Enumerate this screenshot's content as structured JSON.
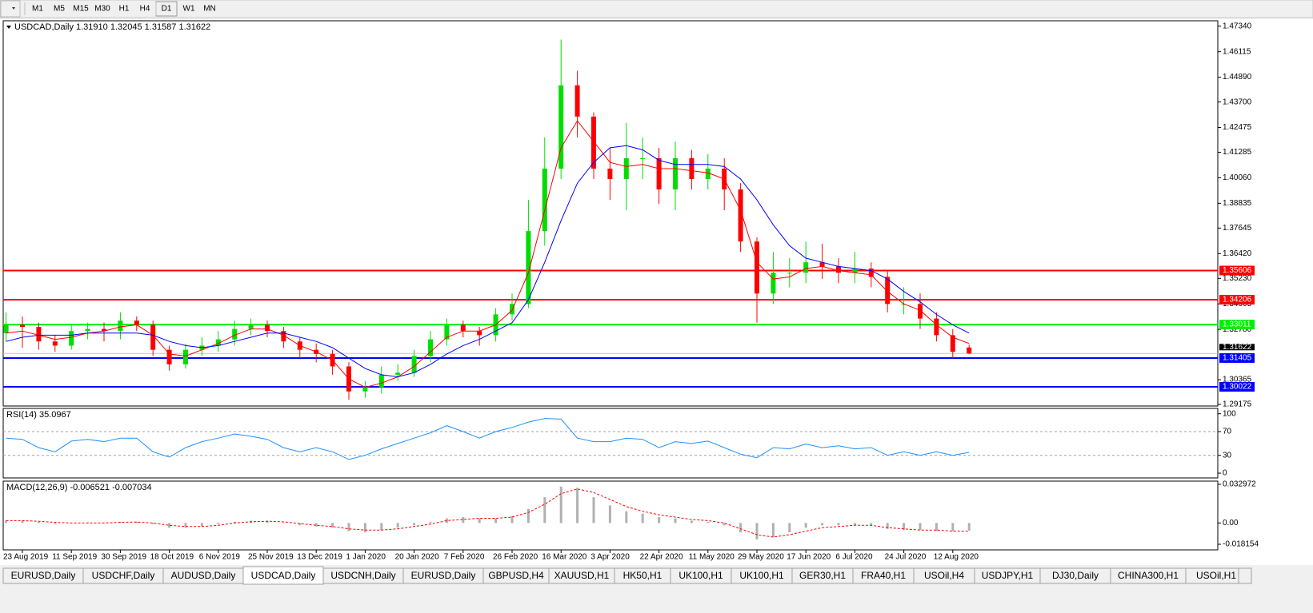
{
  "toolbar": {
    "timeframes": [
      "M1",
      "M5",
      "M15",
      "M30",
      "H1",
      "H4",
      "D1",
      "W1",
      "MN"
    ]
  },
  "chart_data": [
    {
      "type": "candlestick",
      "title": "USDCAD,Daily  1.31910 1.32045 1.31587 1.31622",
      "categories": [
        null,
        "23 Aug 2019",
        null,
        null,
        "11 Sep 2019",
        null,
        null,
        "30 Sep 2019",
        null,
        null,
        "18 Oct 2019",
        null,
        null,
        "6 Nov 2019",
        null,
        null,
        "25 Nov 2019",
        null,
        null,
        "13 Dec 2019",
        null,
        null,
        "1 Jan 2020",
        null,
        null,
        "20 Jan 2020",
        null,
        null,
        "7 Feb 2020",
        null,
        null,
        "26 Feb 2020",
        null,
        null,
        "16 Mar 2020",
        null,
        null,
        "3 Apr 2020",
        null,
        null,
        "22 Apr 2020",
        null,
        null,
        "11 May 2020",
        null,
        null,
        "29 May 2020",
        null,
        null,
        "17 Jun 2020",
        null,
        null,
        "6 Jul 2020",
        null,
        null,
        "24 Jul 2020",
        null,
        null,
        "12 Aug 2020",
        null
      ],
      "open": [
        1.326,
        1.33,
        1.329,
        1.322,
        1.32,
        1.327,
        1.328,
        1.327,
        1.332,
        1.33,
        1.318,
        1.311,
        1.318,
        1.32,
        1.323,
        1.328,
        1.33,
        1.327,
        1.322,
        1.318,
        1.316,
        1.31,
        1.298,
        1.3,
        1.306,
        1.307,
        1.315,
        1.323,
        1.33,
        1.327,
        1.325,
        1.335,
        1.34,
        1.375,
        1.405,
        1.445,
        1.43,
        1.405,
        1.4,
        1.41,
        1.41,
        1.395,
        1.41,
        1.4,
        1.405,
        1.395,
        1.37,
        1.345,
        1.355,
        1.355,
        1.36,
        1.358,
        1.355,
        1.357,
        1.353,
        1.34,
        1.34,
        1.333,
        1.325,
        1.3191
      ],
      "high": [
        1.336,
        1.334,
        1.331,
        1.325,
        1.33,
        1.331,
        1.331,
        1.336,
        1.334,
        1.332,
        1.32,
        1.321,
        1.324,
        1.327,
        1.332,
        1.333,
        1.332,
        1.329,
        1.324,
        1.321,
        1.318,
        1.312,
        1.303,
        1.31,
        1.311,
        1.318,
        1.327,
        1.333,
        1.332,
        1.329,
        1.338,
        1.345,
        1.39,
        1.42,
        1.467,
        1.452,
        1.432,
        1.415,
        1.427,
        1.42,
        1.415,
        1.418,
        1.414,
        1.412,
        1.41,
        1.398,
        1.372,
        1.365,
        1.362,
        1.37,
        1.369,
        1.362,
        1.365,
        1.36,
        1.356,
        1.348,
        1.345,
        1.336,
        1.328,
        1.32045
      ],
      "low": [
        1.322,
        1.319,
        1.318,
        1.317,
        1.318,
        1.323,
        1.322,
        1.323,
        1.327,
        1.315,
        1.308,
        1.309,
        1.315,
        1.317,
        1.32,
        1.325,
        1.324,
        1.319,
        1.314,
        1.312,
        1.306,
        1.294,
        1.295,
        1.297,
        1.303,
        1.305,
        1.312,
        1.32,
        1.324,
        1.32,
        1.322,
        1.332,
        1.338,
        1.368,
        1.4,
        1.42,
        1.4,
        1.39,
        1.385,
        1.4,
        1.388,
        1.385,
        1.395,
        1.395,
        1.385,
        1.365,
        1.331,
        1.34,
        1.348,
        1.35,
        1.352,
        1.35,
        1.35,
        1.348,
        1.336,
        1.335,
        1.328,
        1.322,
        1.314,
        1.31587
      ],
      "close": [
        1.33,
        1.329,
        1.322,
        1.32,
        1.327,
        1.328,
        1.327,
        1.332,
        1.33,
        1.318,
        1.311,
        1.318,
        1.32,
        1.323,
        1.328,
        1.33,
        1.327,
        1.322,
        1.318,
        1.316,
        1.31,
        1.298,
        1.3,
        1.306,
        1.307,
        1.315,
        1.323,
        1.33,
        1.327,
        1.325,
        1.335,
        1.34,
        1.375,
        1.405,
        1.445,
        1.43,
        1.405,
        1.4,
        1.41,
        1.41,
        1.395,
        1.41,
        1.4,
        1.405,
        1.395,
        1.37,
        1.345,
        1.355,
        1.355,
        1.36,
        1.358,
        1.355,
        1.357,
        1.353,
        1.34,
        1.34,
        1.333,
        1.325,
        1.317,
        1.31622
      ],
      "up_color": "#00dd00",
      "down_color": "#ff0000",
      "series": [
        {
          "color": "#ff0000",
          "values": [
            1.326,
            1.327,
            1.325,
            1.323,
            1.324,
            1.326,
            1.327,
            1.329,
            1.33,
            1.325,
            1.316,
            1.315,
            1.318,
            1.321,
            1.325,
            1.328,
            1.328,
            1.325,
            1.32,
            1.317,
            1.313,
            1.304,
            1.3,
            1.302,
            1.305,
            1.31,
            1.317,
            1.324,
            1.327,
            1.327,
            1.33,
            1.337,
            1.355,
            1.385,
            1.415,
            1.428,
            1.418,
            1.408,
            1.406,
            1.407,
            1.405,
            1.405,
            1.404,
            1.403,
            1.4,
            1.385,
            1.36,
            1.352,
            1.353,
            1.357,
            1.358,
            1.356,
            1.355,
            1.354,
            1.346,
            1.34,
            1.337,
            1.33,
            1.324,
            1.321
          ]
        },
        {
          "color": "#0000ff",
          "values": [
            1.322,
            1.324,
            1.325,
            1.325,
            1.325,
            1.326,
            1.326,
            1.326,
            1.326,
            1.325,
            1.322,
            1.32,
            1.319,
            1.32,
            1.322,
            1.324,
            1.326,
            1.326,
            1.324,
            1.322,
            1.319,
            1.314,
            1.309,
            1.306,
            1.305,
            1.307,
            1.311,
            1.316,
            1.32,
            1.323,
            1.327,
            1.331,
            1.342,
            1.36,
            1.38,
            1.398,
            1.408,
            1.415,
            1.416,
            1.414,
            1.409,
            1.407,
            1.407,
            1.407,
            1.406,
            1.4,
            1.39,
            1.378,
            1.368,
            1.362,
            1.36,
            1.358,
            1.357,
            1.356,
            1.352,
            1.346,
            1.341,
            1.335,
            1.33,
            1.326
          ]
        }
      ],
      "ylim": [
        1.291,
        1.476
      ],
      "yticks": [
        {
          "value": 1.4734,
          "label": "1.47340"
        },
        1.46115,
        {
          "value": 1.4489,
          "label": "1.44890"
        },
        {
          "value": 1.437,
          "label": "1.43700"
        },
        1.42475,
        1.41285,
        {
          "value": 1.4006,
          "label": "1.40060"
        },
        1.38835,
        1.37645,
        {
          "value": 1.3642,
          "label": "1.36420"
        },
        {
          "value": 1.3523,
          "label": "1.35230"
        },
        1.34005,
        {
          "value": 1.3278,
          "label": "1.32780"
        },
        1.30365,
        1.29175
      ],
      "levels": [
        {
          "value": 1.35606,
          "color": "#ff0000"
        },
        {
          "value": 1.34206,
          "color": "#ff0000"
        },
        {
          "value": 1.33011,
          "color": "#00ee00"
        },
        {
          "value": 1.31405,
          "color": "#0000ff"
        },
        {
          "value": 1.30022,
          "color": "#0000ff"
        }
      ],
      "current_price": 1.31622
    },
    {
      "type": "line",
      "title": "RSI(14) 35.0967",
      "series": [
        {
          "color": "#1e90ff",
          "values": [
            59,
            57,
            43,
            36,
            54,
            57,
            53,
            59,
            59,
            36,
            27,
            43,
            53,
            59,
            66,
            62,
            57,
            43,
            36,
            43,
            36,
            23,
            30,
            41,
            50,
            59,
            68,
            80,
            70,
            59,
            70,
            77,
            86,
            92,
            91,
            59,
            53,
            53,
            59,
            57,
            43,
            53,
            50,
            54,
            43,
            32,
            26,
            43,
            41,
            49,
            43,
            46,
            41,
            43,
            30,
            36,
            30,
            36,
            30,
            35.0967
          ]
        }
      ],
      "ylim": [
        -8,
        109
      ],
      "yticks": [
        0,
        30,
        70,
        100
      ],
      "levels": [
        30,
        70
      ]
    },
    {
      "type": "macd",
      "title": "MACD(12,26,9) -0.006521 -0.007034",
      "color": "#b0b0b0",
      "values": [
        0.002,
        0.002,
        0.001,
        -0.001,
        0,
        0.0005,
        0,
        0.001,
        0.001,
        -0.001,
        -0.004,
        -0.004,
        -0.003,
        -0.001,
        0.001,
        0.002,
        0.002,
        0,
        -0.002,
        -0.003,
        -0.004,
        -0.007,
        -0.008,
        -0.006,
        -0.004,
        -0.002,
        0.001,
        0.004,
        0.005,
        0.004,
        0.004,
        0.006,
        0.012,
        0.022,
        0.031,
        0.03,
        0.022,
        0.015,
        0.01,
        0.008,
        0.005,
        0.004,
        0.002,
        0.001,
        -0.002,
        -0.008,
        -0.014,
        -0.012,
        -0.008,
        -0.004,
        -0.002,
        -0.002,
        -0.002,
        -0.002,
        -0.005,
        -0.006,
        -0.006,
        -0.007,
        -0.007,
        -0.006521
      ],
      "series": [
        {
          "color": "#ff0000",
          "values": [
            0.002,
            0.002,
            0.0015,
            0.0005,
            0,
            0,
            0,
            0.0005,
            0.0008,
            0,
            -0.002,
            -0.003,
            -0.003,
            -0.002,
            0,
            0.001,
            0.0015,
            0.001,
            -0.0005,
            -0.002,
            -0.003,
            -0.005,
            -0.006,
            -0.006,
            -0.005,
            -0.003,
            -0.001,
            0.002,
            0.003,
            0.004,
            0.004,
            0.005,
            0.009,
            0.016,
            0.025,
            0.029,
            0.026,
            0.02,
            0.014,
            0.01,
            0.007,
            0.005,
            0.003,
            0.002,
            0,
            -0.005,
            -0.01,
            -0.012,
            -0.01,
            -0.007,
            -0.004,
            -0.003,
            -0.002,
            -0.002,
            -0.004,
            -0.005,
            -0.006,
            -0.006,
            -0.007,
            -0.007034
          ]
        }
      ],
      "ylim": [
        -0.02293,
        0.0357
      ],
      "yticks": [
        0.032972,
        {
          "value": 0,
          "label": "0.00"
        },
        -0.018154
      ]
    }
  ],
  "tabs": [
    "EURUSD,Daily",
    "USDCHF,Daily",
    "AUDUSD,Daily",
    "USDCAD,Daily",
    "USDCNH,Daily",
    "EURUSD,Daily",
    "GBPUSD,H4",
    "XAUUSD,H1",
    "HK50,H1",
    "UK100,H1",
    "UK100,H1",
    "GER30,H1",
    "FRA40,H1",
    "USOil,H4",
    "USDJPY,H1",
    "DJ30,Daily",
    "CHINA300,H1",
    "USOil,H1"
  ],
  "active_tab": 3
}
